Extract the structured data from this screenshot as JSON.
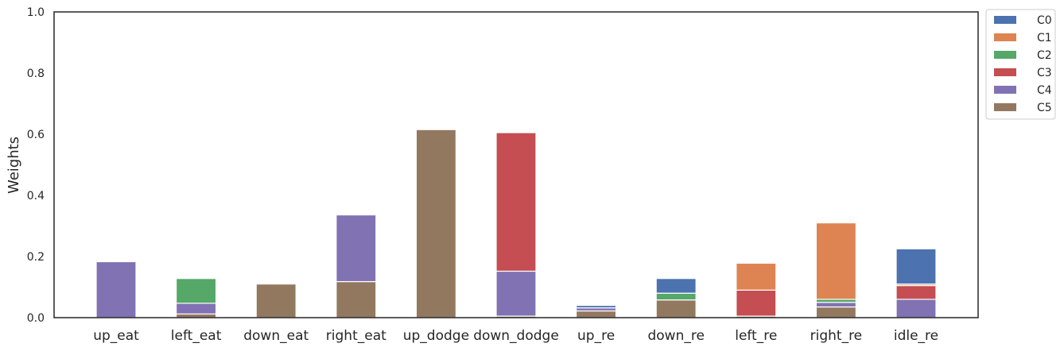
{
  "chart_data": {
    "type": "bar",
    "stacked": true,
    "categories": [
      "up_eat",
      "left_eat",
      "down_eat",
      "right_eat",
      "up_dodge",
      "down_dodge",
      "up_re",
      "down_re",
      "left_re",
      "right_re",
      "idle_re"
    ],
    "ylabel": "Weights",
    "ylim": [
      0,
      1.0
    ],
    "yticks": [
      "0.0",
      "0.2",
      "0.4",
      "0.6",
      "0.8",
      "1.0"
    ],
    "grid": false,
    "legend_position": "outside-top-right",
    "series": [
      {
        "name": "C5",
        "color": "#937860",
        "values": [
          0.0,
          0.012,
          0.11,
          0.118,
          0.615,
          0.005,
          0.022,
          0.058,
          0.005,
          0.035,
          0.0
        ]
      },
      {
        "name": "C4",
        "color": "#8172b3",
        "values": [
          0.183,
          0.035,
          0.0,
          0.218,
          0.0,
          0.147,
          0.01,
          0.0,
          0.0,
          0.015,
          0.06
        ]
      },
      {
        "name": "C3",
        "color": "#c44e52",
        "values": [
          0.0,
          0.0,
          0.0,
          0.0,
          0.0,
          0.453,
          0.0,
          0.0,
          0.085,
          0.0,
          0.045
        ]
      },
      {
        "name": "C2",
        "color": "#55a868",
        "values": [
          0.0,
          0.081,
          0.0,
          0.0,
          0.0,
          0.0,
          0.0,
          0.022,
          0.0,
          0.01,
          0.0
        ]
      },
      {
        "name": "C1",
        "color": "#dd8452",
        "values": [
          0.0,
          0.0,
          0.0,
          0.0,
          0.0,
          0.0,
          0.0,
          0.0,
          0.088,
          0.25,
          0.005
        ]
      },
      {
        "name": "C0",
        "color": "#4c72b0",
        "values": [
          0.0,
          0.0,
          0.0,
          0.0,
          0.0,
          0.0,
          0.008,
          0.048,
          0.0,
          0.0,
          0.115
        ]
      }
    ],
    "legend_order": [
      "C0",
      "C1",
      "C2",
      "C3",
      "C4",
      "C5"
    ]
  }
}
